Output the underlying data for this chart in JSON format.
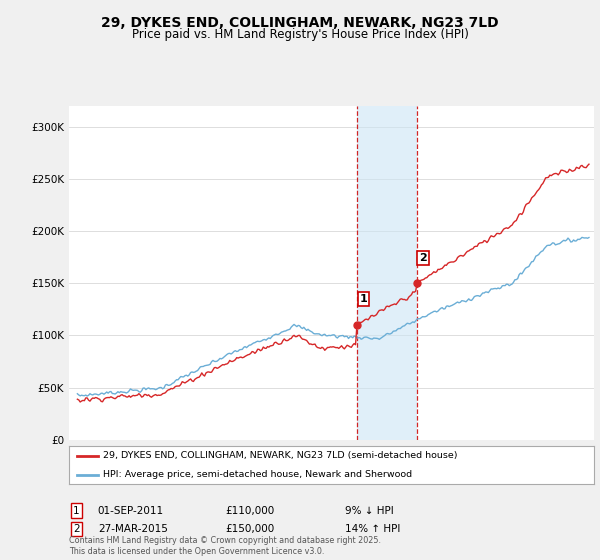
{
  "title": "29, DYKES END, COLLINGHAM, NEWARK, NG23 7LD",
  "subtitle": "Price paid vs. HM Land Registry's House Price Index (HPI)",
  "hpi_color": "#6baed6",
  "price_color": "#d62728",
  "sale1_date_x": 2011.67,
  "sale1_price": 110000,
  "sale1_label": "1",
  "sale1_pct": "9% ↓ HPI",
  "sale1_date_str": "01-SEP-2011",
  "sale2_date_x": 2015.24,
  "sale2_price": 150000,
  "sale2_label": "2",
  "sale2_pct": "14% ↑ HPI",
  "sale2_date_str": "27-MAR-2015",
  "ylim_min": 0,
  "ylim_max": 320000,
  "xlim_min": 1994.5,
  "xlim_max": 2025.8,
  "background_color": "#f0f0f0",
  "plot_bg_color": "#ffffff",
  "legend1_label": "29, DYKES END, COLLINGHAM, NEWARK, NG23 7LD (semi-detached house)",
  "legend2_label": "HPI: Average price, semi-detached house, Newark and Sherwood",
  "footer": "Contains HM Land Registry data © Crown copyright and database right 2025.\nThis data is licensed under the Open Government Licence v3.0.",
  "shade_color": "#cce5f5",
  "shade_alpha": 0.6,
  "vline_color": "#cc0000",
  "yticks": [
    0,
    50000,
    100000,
    150000,
    200000,
    250000,
    300000
  ],
  "ylabels": [
    "£0",
    "£50K",
    "£100K",
    "£150K",
    "£200K",
    "£250K",
    "£300K"
  ]
}
